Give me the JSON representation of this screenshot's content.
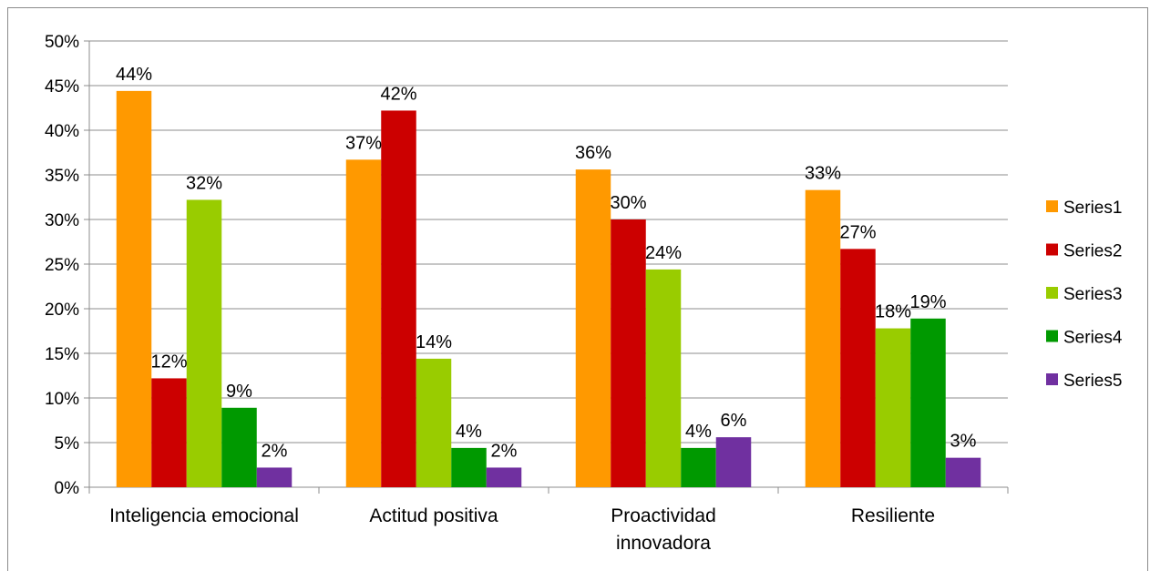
{
  "chart_data": {
    "type": "bar",
    "title": "",
    "xlabel": "",
    "ylabel": "",
    "ylim": [
      0,
      50
    ],
    "y_ticks": [
      "0%",
      "5%",
      "10%",
      "15%",
      "20%",
      "25%",
      "30%",
      "35%",
      "40%",
      "45%",
      "50%"
    ],
    "y_tick_values": [
      0,
      5,
      10,
      15,
      20,
      25,
      30,
      35,
      40,
      45,
      50
    ],
    "grid": true,
    "legend_position": "right",
    "categories": [
      [
        "Inteligencia emocional"
      ],
      [
        "Actitud positiva"
      ],
      [
        "Proactividad",
        "innovadora"
      ],
      [
        "Resiliente"
      ]
    ],
    "series": [
      {
        "name": "Series1",
        "color": "#FF9900",
        "values": [
          44.4,
          36.7,
          35.6,
          33.3
        ],
        "labels": [
          "44%",
          "37%",
          "36%",
          "33%"
        ]
      },
      {
        "name": "Series2",
        "color": "#CC0000",
        "values": [
          12.2,
          42.2,
          30.0,
          26.7
        ],
        "labels": [
          "12%",
          "42%",
          "30%",
          "27%"
        ]
      },
      {
        "name": "Series3",
        "color": "#99CC00",
        "values": [
          32.2,
          14.4,
          24.4,
          17.8
        ],
        "labels": [
          "32%",
          "14%",
          "24%",
          "18%"
        ]
      },
      {
        "name": "Series4",
        "color": "#009900",
        "values": [
          8.9,
          4.4,
          4.4,
          18.9
        ],
        "labels": [
          "9%",
          "4%",
          "4%",
          "19%"
        ]
      },
      {
        "name": "Series5",
        "color": "#7030A0",
        "values": [
          2.2,
          2.2,
          5.6,
          3.3
        ],
        "labels": [
          "2%",
          "2%",
          "6%",
          "3%"
        ]
      }
    ]
  }
}
